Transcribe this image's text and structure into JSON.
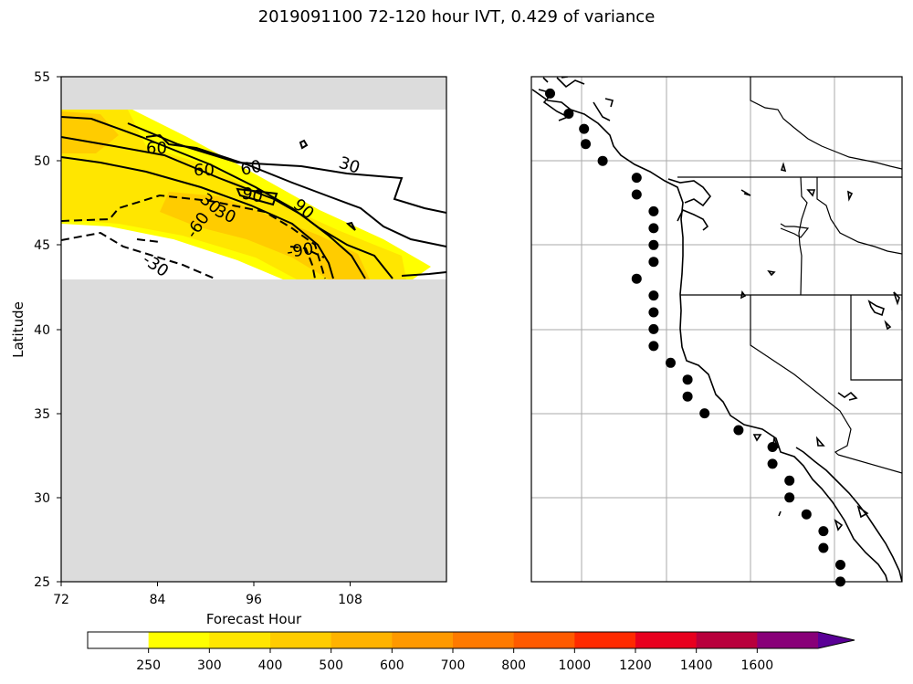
{
  "title": "2019091100 72-120 hour IVT, 0.429 of variance",
  "colors": {
    "missing": "#dcdcdc",
    "levels": [
      "#ffff00",
      "#ffe600",
      "#ffcc00",
      "#ffb300",
      "#ff9900",
      "#ff7a00",
      "#ff5a00",
      "#ff2a00",
      "#e8001e",
      "#b8003c",
      "#880078",
      "#5a0096"
    ]
  },
  "chart_data": [
    {
      "type": "heatmap",
      "xlabel": "Forecast Hour",
      "ylabel": "Latitude",
      "xlim": [
        72,
        120
      ],
      "ylim": [
        25,
        55
      ],
      "xticks": [
        "72",
        "84",
        "96",
        "108"
      ],
      "yticks": [
        "25",
        "30",
        "35",
        "40",
        "45",
        "50",
        "55"
      ],
      "contour_labels": [
        "60",
        "60",
        "60",
        "30",
        "90",
        "30",
        "90",
        "30",
        "-60",
        "-90",
        "-30"
      ]
    },
    {
      "type": "scatter",
      "description_points_on_coastline": true,
      "points": [
        [
          -132.3,
          54.0
        ],
        [
          -131.2,
          52.8
        ],
        [
          -130.3,
          51.9
        ],
        [
          -130.2,
          51.0
        ],
        [
          -129.2,
          50.0
        ],
        [
          -127.2,
          49.0
        ],
        [
          -127.2,
          48.0
        ],
        [
          -126.2,
          47.0
        ],
        [
          -126.2,
          46.0
        ],
        [
          -126.2,
          45.0
        ],
        [
          -126.2,
          44.0
        ],
        [
          -127.2,
          43.0
        ],
        [
          -126.2,
          42.0
        ],
        [
          -126.2,
          41.0
        ],
        [
          -126.2,
          40.0
        ],
        [
          -126.2,
          39.0
        ],
        [
          -125.2,
          38.0
        ],
        [
          -124.2,
          37.0
        ],
        [
          -124.2,
          36.0
        ],
        [
          -123.2,
          35.0
        ],
        [
          -121.2,
          34.0
        ],
        [
          -119.2,
          33.0
        ],
        [
          -119.2,
          32.0
        ],
        [
          -118.2,
          31.0
        ],
        [
          -118.2,
          30.0
        ],
        [
          -117.2,
          29.0
        ],
        [
          -116.2,
          28.0
        ],
        [
          -116.2,
          27.0
        ],
        [
          -115.2,
          26.0
        ],
        [
          -115.2,
          25.0
        ]
      ]
    },
    {
      "type": "colorbar",
      "ticks": [
        "250",
        "300",
        "400",
        "500",
        "600",
        "700",
        "800",
        "1000",
        "1200",
        "1400",
        "1600"
      ]
    }
  ]
}
